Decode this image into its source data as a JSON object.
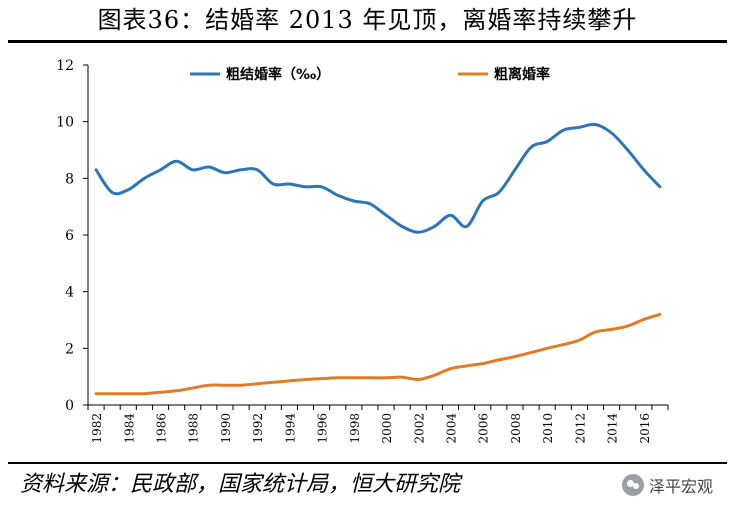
{
  "header": {
    "title": "图表36：结婚率 2013 年见顶，离婚率持续攀升"
  },
  "footer": {
    "source": "资料来源：民政部，国家统计局，恒大研究院",
    "brand": "泽平宏观"
  },
  "chart_data": {
    "type": "line",
    "title": "图表36：结婚率 2013 年见顶，离婚率持续攀升",
    "xlabel": "",
    "ylabel": "",
    "ylim": [
      0,
      12
    ],
    "yticks": [
      "0",
      "2",
      "4",
      "6",
      "8",
      "10",
      "12"
    ],
    "xticks": [
      "1982",
      "1984",
      "1986",
      "1988",
      "1990",
      "1992",
      "1994",
      "1996",
      "1998",
      "2000",
      "2002",
      "2004",
      "2006",
      "2008",
      "2010",
      "2012",
      "2014",
      "2016"
    ],
    "grid": false,
    "legend_position": "top",
    "x": [
      1982,
      1983,
      1984,
      1985,
      1986,
      1987,
      1988,
      1989,
      1990,
      1991,
      1992,
      1993,
      1994,
      1995,
      1996,
      1997,
      1998,
      1999,
      2000,
      2001,
      2002,
      2003,
      2004,
      2005,
      2006,
      2007,
      2008,
      2009,
      2010,
      2011,
      2012,
      2013,
      2014,
      2015,
      2016,
      2017
    ],
    "series": [
      {
        "name": "粗结婚率（‰）",
        "color": "#2e75b6",
        "values": [
          8.3,
          7.5,
          7.6,
          8.0,
          8.3,
          8.6,
          8.3,
          8.4,
          8.2,
          8.3,
          8.3,
          7.8,
          7.8,
          7.7,
          7.7,
          7.4,
          7.2,
          7.1,
          6.7,
          6.3,
          6.1,
          6.3,
          6.7,
          6.3,
          7.2,
          7.5,
          8.3,
          9.1,
          9.3,
          9.7,
          9.8,
          9.9,
          9.6,
          9.0,
          8.3,
          7.7
        ]
      },
      {
        "name": "粗离婚率",
        "color": "#e07b28",
        "values": [
          0.4,
          0.4,
          0.4,
          0.4,
          0.45,
          0.5,
          0.6,
          0.7,
          0.7,
          0.7,
          0.75,
          0.8,
          0.85,
          0.9,
          0.93,
          0.96,
          0.96,
          0.96,
          0.96,
          0.98,
          0.9,
          1.05,
          1.28,
          1.38,
          1.46,
          1.59,
          1.71,
          1.85,
          2.0,
          2.13,
          2.29,
          2.58,
          2.67,
          2.79,
          3.02,
          3.2
        ]
      }
    ]
  }
}
